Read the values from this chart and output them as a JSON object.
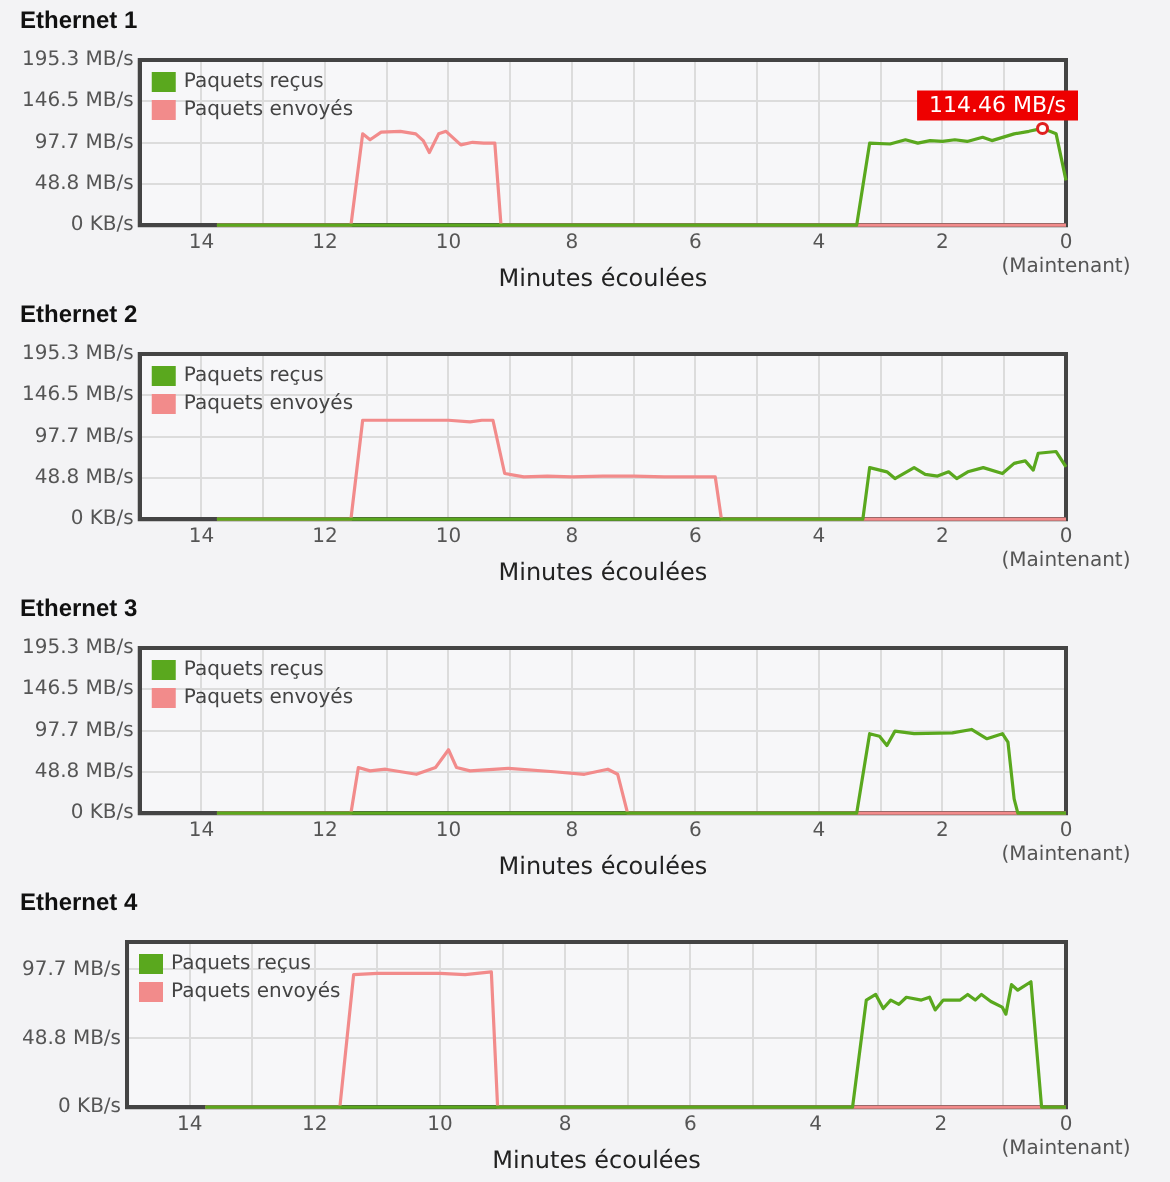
{
  "chart_data": [
    {
      "type": "line",
      "title": "Ethernet 1",
      "xlabel": "Minutes écoulées",
      "xlim": [
        15,
        0
      ],
      "xticks": [
        {
          "value": 15,
          "label": null
        },
        {
          "value": 14,
          "label": "14"
        },
        {
          "value": 13,
          "label": null
        },
        {
          "value": 12,
          "label": "12"
        },
        {
          "value": 11,
          "label": null
        },
        {
          "value": 10,
          "label": "10"
        },
        {
          "value": 9,
          "label": null
        },
        {
          "value": 8,
          "label": "8"
        },
        {
          "value": 7,
          "label": null
        },
        {
          "value": 6,
          "label": "6"
        },
        {
          "value": 5,
          "label": null
        },
        {
          "value": 4,
          "label": "4"
        },
        {
          "value": 3,
          "label": null
        },
        {
          "value": 2,
          "label": "2"
        },
        {
          "value": 1,
          "label": null
        },
        {
          "value": 0,
          "label": "0\n(Maintenant)"
        }
      ],
      "ylim": [
        0,
        195.3
      ],
      "yticks": [
        {
          "value": 0,
          "label": "0 KB/s"
        },
        {
          "value": 48.8,
          "label": "48.8 MB/s"
        },
        {
          "value": 97.7,
          "label": "97.7 MB/s"
        },
        {
          "value": 146.5,
          "label": "146.5 MB/s"
        },
        {
          "value": 195.3,
          "label": "195.3 MB/s"
        }
      ],
      "grid": true,
      "legend": "top left",
      "marker": "none",
      "line_style": "solid",
      "annotations": [
        {
          "text": "114.46 MB/s",
          "x": 0.38,
          "y": 114.46
        }
      ],
      "series": [
        {
          "name": "Paquets reçus",
          "color": "#5aa81e",
          "x": [
            13.75,
            3.39,
            3.18,
            2.85,
            2.6,
            2.4,
            2.2,
            2.0,
            1.8,
            1.6,
            1.35,
            1.2,
            0.84,
            0.6,
            0.38,
            0.16,
            0
          ],
          "values": [
            0,
            0,
            97,
            96,
            101,
            97,
            100,
            99,
            101,
            99,
            104,
            100,
            108,
            111,
            114.46,
            108,
            53
          ]
        },
        {
          "name": "Paquets envoyés",
          "color": "#f28b8b",
          "x": [
            13.75,
            11.58,
            11.39,
            11.27,
            11.09,
            10.78,
            10.53,
            10.41,
            10.31,
            10.16,
            10.04,
            9.8,
            9.61,
            9.43,
            9.25,
            9.15,
            0
          ],
          "values": [
            0,
            0,
            108,
            101,
            110,
            111,
            108,
            100,
            86,
            108,
            111,
            95,
            98,
            97,
            97,
            0,
            0
          ]
        }
      ]
    },
    {
      "type": "line",
      "title": "Ethernet 2",
      "xlabel": "Minutes écoulées",
      "xlim": [
        15,
        0
      ],
      "xticks": [
        {
          "value": 15,
          "label": null
        },
        {
          "value": 14,
          "label": "14"
        },
        {
          "value": 13,
          "label": null
        },
        {
          "value": 12,
          "label": "12"
        },
        {
          "value": 11,
          "label": null
        },
        {
          "value": 10,
          "label": "10"
        },
        {
          "value": 9,
          "label": null
        },
        {
          "value": 8,
          "label": "8"
        },
        {
          "value": 7,
          "label": null
        },
        {
          "value": 6,
          "label": "6"
        },
        {
          "value": 5,
          "label": null
        },
        {
          "value": 4,
          "label": "4"
        },
        {
          "value": 3,
          "label": null
        },
        {
          "value": 2,
          "label": "2"
        },
        {
          "value": 1,
          "label": null
        },
        {
          "value": 0,
          "label": "0\n(Maintenant)"
        }
      ],
      "ylim": [
        0,
        195.3
      ],
      "yticks": [
        {
          "value": 0,
          "label": "0 KB/s"
        },
        {
          "value": 48.8,
          "label": "48.8 MB/s"
        },
        {
          "value": 97.7,
          "label": "97.7 MB/s"
        },
        {
          "value": 146.5,
          "label": "146.5 MB/s"
        },
        {
          "value": 195.3,
          "label": "195.3 MB/s"
        }
      ],
      "grid": true,
      "legend": "top left",
      "marker": "none",
      "line_style": "solid",
      "series": [
        {
          "name": "Paquets reçus",
          "color": "#5aa81e",
          "x": [
            13.75,
            3.29,
            3.18,
            2.9,
            2.77,
            2.46,
            2.28,
            2.08,
            1.9,
            1.77,
            1.59,
            1.34,
            1.03,
            0.84,
            0.66,
            0.53,
            0.45,
            0.16,
            0
          ],
          "values": [
            0,
            0,
            61,
            56,
            48,
            61,
            53,
            51,
            56,
            48,
            56,
            61,
            54,
            66,
            69,
            58,
            78,
            80,
            62
          ]
        },
        {
          "name": "Paquets envoyés",
          "color": "#f28b8b",
          "x": [
            13.75,
            11.58,
            11.39,
            10.0,
            9.65,
            9.46,
            9.28,
            9.09,
            8.78,
            8.4,
            8.0,
            7.5,
            7.0,
            6.5,
            6.0,
            5.68,
            5.58,
            0
          ],
          "values": [
            0,
            0,
            117,
            117,
            115,
            117,
            117,
            54,
            50,
            51,
            50,
            51,
            51,
            50,
            50,
            50,
            0,
            0
          ]
        }
      ]
    },
    {
      "type": "line",
      "title": "Ethernet 3",
      "xlabel": "Minutes écoulées",
      "xlim": [
        15,
        0
      ],
      "xticks": [
        {
          "value": 15,
          "label": null
        },
        {
          "value": 14,
          "label": "14"
        },
        {
          "value": 13,
          "label": null
        },
        {
          "value": 12,
          "label": "12"
        },
        {
          "value": 11,
          "label": null
        },
        {
          "value": 10,
          "label": "10"
        },
        {
          "value": 9,
          "label": null
        },
        {
          "value": 8,
          "label": "8"
        },
        {
          "value": 7,
          "label": null
        },
        {
          "value": 6,
          "label": "6"
        },
        {
          "value": 5,
          "label": null
        },
        {
          "value": 4,
          "label": "4"
        },
        {
          "value": 3,
          "label": null
        },
        {
          "value": 2,
          "label": "2"
        },
        {
          "value": 1,
          "label": null
        },
        {
          "value": 0,
          "label": "0\n(Maintenant)"
        }
      ],
      "ylim": [
        0,
        195.3
      ],
      "yticks": [
        {
          "value": 0,
          "label": "0 KB/s"
        },
        {
          "value": 48.8,
          "label": "48.8 MB/s"
        },
        {
          "value": 97.7,
          "label": "97.7 MB/s"
        },
        {
          "value": 146.5,
          "label": "146.5 MB/s"
        },
        {
          "value": 195.3,
          "label": "195.3 MB/s"
        }
      ],
      "grid": true,
      "legend": "top left",
      "marker": "none",
      "line_style": "solid",
      "series": [
        {
          "name": "Paquets reçus",
          "color": "#5aa81e",
          "x": [
            13.75,
            3.39,
            3.18,
            3.02,
            2.9,
            2.77,
            2.46,
            1.84,
            1.53,
            1.28,
            1.03,
            0.94,
            0.84,
            0.78,
            0
          ],
          "values": [
            0,
            0,
            94,
            91,
            80,
            97,
            94,
            95,
            99,
            88,
            94,
            84,
            17,
            0,
            0
          ]
        },
        {
          "name": "Paquets envoyés",
          "color": "#f28b8b",
          "x": [
            13.75,
            11.58,
            11.46,
            11.27,
            11.02,
            10.52,
            10.21,
            10.0,
            9.87,
            9.65,
            9.03,
            8.29,
            7.8,
            7.42,
            7.26,
            7.1,
            0
          ],
          "values": [
            0,
            0,
            54,
            50,
            52,
            46,
            54,
            75,
            54,
            50,
            53,
            49,
            46,
            52,
            46,
            0,
            0
          ]
        }
      ]
    },
    {
      "type": "line",
      "title": "Ethernet 4",
      "xlabel": "Minutes écoulées",
      "xlim": [
        15,
        0
      ],
      "xticks": [
        {
          "value": 15,
          "label": null
        },
        {
          "value": 14,
          "label": "14"
        },
        {
          "value": 13,
          "label": null
        },
        {
          "value": 12,
          "label": "12"
        },
        {
          "value": 11,
          "label": null
        },
        {
          "value": 10,
          "label": "10"
        },
        {
          "value": 9,
          "label": null
        },
        {
          "value": 8,
          "label": "8"
        },
        {
          "value": 7,
          "label": null
        },
        {
          "value": 6,
          "label": "6"
        },
        {
          "value": 5,
          "label": null
        },
        {
          "value": 4,
          "label": "4"
        },
        {
          "value": 3,
          "label": null
        },
        {
          "value": 2,
          "label": "2"
        },
        {
          "value": 1,
          "label": null
        },
        {
          "value": 0,
          "label": "0\n(Maintenant)"
        }
      ],
      "ylim": [
        0,
        117.2
      ],
      "yticks": [
        {
          "value": 0,
          "label": "0 KB/s"
        },
        {
          "value": 48.8,
          "label": "48.8 MB/s"
        },
        {
          "value": 97.7,
          "label": "97.7 MB/s"
        }
      ],
      "grid": true,
      "legend": "top left",
      "marker": "none",
      "line_style": "solid",
      "series": [
        {
          "name": "Paquets reçus",
          "color": "#5aa81e",
          "x": [
            13.75,
            3.41,
            3.19,
            3.04,
            2.92,
            2.8,
            2.67,
            2.55,
            2.31,
            2.18,
            2.09,
            1.96,
            1.69,
            1.57,
            1.45,
            1.35,
            1.2,
            1.02,
            0.96,
            0.87,
            0.77,
            0.56,
            0.39,
            0
          ],
          "values": [
            0,
            0,
            76,
            80,
            70,
            76,
            73,
            78,
            76,
            78,
            69,
            76,
            76,
            80,
            76,
            80,
            75,
            71,
            66,
            87,
            83,
            89,
            0,
            0
          ]
        },
        {
          "name": "Paquets envoyés",
          "color": "#f28b8b",
          "x": [
            13.75,
            11.6,
            11.38,
            11.0,
            10.5,
            10.0,
            9.6,
            9.18,
            9.08,
            0
          ],
          "values": [
            0,
            0,
            94,
            95,
            95,
            95,
            94,
            96,
            0,
            0
          ]
        }
      ]
    }
  ]
}
